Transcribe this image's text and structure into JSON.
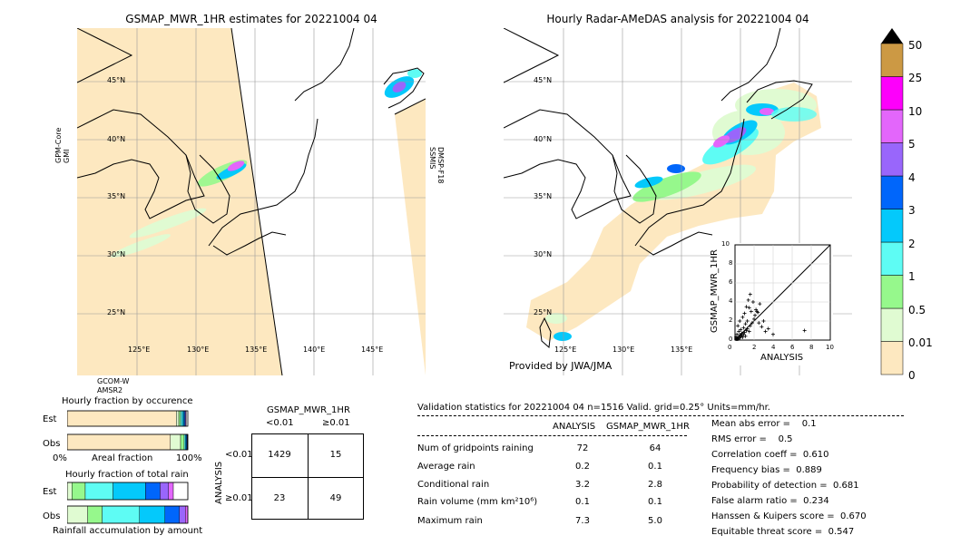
{
  "colors": {
    "land": "#fde8c0",
    "scale": [
      "#fde8c0",
      "#e0fbd2",
      "#96f88c",
      "#5efcf4",
      "#04c9fb",
      "#0066fb",
      "#9966fb",
      "#e366fb",
      "#fd00fb",
      "#cc9944"
    ]
  },
  "left_map": {
    "title": "GSMAP_MWR_1HR estimates for 20221004 04",
    "sat_left": "GPM-Core\nGMI",
    "sat_right": "DMSP-F18\nSSMIS",
    "sat_bottom": "GCOM-W\nAMSR2",
    "lat_labels": [
      "45°N",
      "40°N",
      "35°N",
      "30°N",
      "25°N"
    ],
    "lon_labels": [
      "125°E",
      "130°E",
      "135°E",
      "140°E",
      "145°E"
    ]
  },
  "right_map": {
    "title": "Hourly Radar-AMeDAS analysis for 20221004 04",
    "credit": "Provided by JWA/JMA",
    "lat_labels": [
      "45°N",
      "40°N",
      "35°N",
      "30°N",
      "25°N"
    ],
    "lon_labels": [
      "125°E",
      "130°E",
      "135°E",
      "140°E",
      "145°E"
    ]
  },
  "scatter": {
    "xlabel": "ANALYSIS",
    "ylabel": "GSMAP_MWR_1HR",
    "ticks": [
      "0",
      "2",
      "4",
      "6",
      "8",
      "10"
    ],
    "top_label": "10"
  },
  "colorbar": {
    "labels": [
      "50",
      "25",
      "10",
      "5",
      "4",
      "3",
      "2",
      "1",
      "0.5",
      "0.01",
      "0"
    ]
  },
  "occurrence": {
    "title": "Hourly fraction by occurence",
    "rows": [
      "Est",
      "Obs"
    ],
    "x_left": "0%",
    "x_mid": "Areal fraction",
    "x_right": "100%"
  },
  "total_rain": {
    "title": "Hourly fraction of total rain",
    "rows": [
      "Est",
      "Obs"
    ],
    "xlabel": "Rainfall accumulation by amount"
  },
  "contingency": {
    "title": "GSMAP_MWR_1HR",
    "col_headers": [
      "<0.01",
      "≥0.01"
    ],
    "side_label": "ANALYSIS",
    "row_headers": [
      "<0.01",
      "≥0.01"
    ],
    "cells": [
      [
        "1429",
        "15"
      ],
      [
        "23",
        "49"
      ]
    ]
  },
  "validation": {
    "header": "Validation statistics for 20221004 04  n=1516 Valid. grid=0.25° Units=mm/hr.",
    "col_analysis": "ANALYSIS",
    "col_gsmap": "GSMAP_MWR_1HR",
    "rows": [
      {
        "label": "Num of gridpoints raining",
        "a": "72",
        "g": "64"
      },
      {
        "label": "Average rain",
        "a": "0.2",
        "g": "0.1"
      },
      {
        "label": "Conditional rain",
        "a": "3.2",
        "g": "2.8"
      },
      {
        "label": "Rain volume (mm km²10⁶)",
        "a": "0.1",
        "g": "0.1"
      },
      {
        "label": "Maximum rain",
        "a": "7.3",
        "g": "5.0"
      }
    ],
    "scores": [
      "Mean abs error =    0.1",
      "RMS error =    0.5",
      "Correlation coeff =  0.610",
      "Frequency bias =  0.889",
      "Probability of detection =  0.681",
      "False alarm ratio =  0.234",
      "Hanssen & Kuipers score =  0.670",
      "Equitable threat score =  0.547"
    ]
  },
  "chart_data": [
    {
      "type": "scatter",
      "title": "",
      "xlabel": "ANALYSIS",
      "ylabel": "GSMAP_MWR_1HR",
      "xlim": [
        0,
        10
      ],
      "ylim": [
        0,
        10
      ],
      "x": [
        0.1,
        0.2,
        0.3,
        0.4,
        0.5,
        0.6,
        0.7,
        0.8,
        0.9,
        1.0,
        1.1,
        1.2,
        1.3,
        1.5,
        1.6,
        1.8,
        2.0,
        2.1,
        2.3,
        2.5,
        2.8,
        3.0,
        3.2,
        4.0,
        0.3,
        0.5,
        0.8,
        1.0,
        1.2,
        1.4,
        1.6,
        1.9,
        2.2,
        2.6,
        7.3,
        0.2,
        0.4,
        0.6,
        0.9,
        1.1,
        0.1,
        0.3,
        0.5,
        0.7,
        1.3,
        1.7,
        2.4,
        1.5,
        3.5,
        0.2
      ],
      "y": [
        0.1,
        0.2,
        0.1,
        0.3,
        0.2,
        0.4,
        0.5,
        0.3,
        0.6,
        0.8,
        0.4,
        1.0,
        1.2,
        0.9,
        1.5,
        1.8,
        2.2,
        2.6,
        3.0,
        1.8,
        1.4,
        2.0,
        0.9,
        0.6,
        1.5,
        2.0,
        2.4,
        2.8,
        3.5,
        4.2,
        4.8,
        4.0,
        3.2,
        3.8,
        1.0,
        0.6,
        0.9,
        1.1,
        1.3,
        1.7,
        0.3,
        0.2,
        0.5,
        0.7,
        2.0,
        3.0,
        2.9,
        3.4,
        1.2,
        0.1
      ]
    },
    {
      "type": "bar",
      "title": "Hourly fraction by occurence",
      "categories": [
        "Est",
        "Obs"
      ],
      "series": [
        {
          "color": "#fde8c0",
          "values": [
            0.905,
            0.855
          ]
        },
        {
          "color": "#e0fbd2",
          "values": [
            0.02,
            0.085
          ]
        },
        {
          "color": "#96f88c",
          "values": [
            0.015,
            0.03
          ]
        },
        {
          "color": "#5efcf4",
          "values": [
            0.015,
            0.01
          ]
        },
        {
          "color": "#04c9fb",
          "values": [
            0.012,
            0.008
          ]
        },
        {
          "color": "#0066fb",
          "values": [
            0.01,
            0.006
          ]
        },
        {
          "color": "#9966fb",
          "values": [
            0.006,
            0.004
          ]
        },
        {
          "color": "#e366fb",
          "values": [
            0.004,
            0.002
          ]
        }
      ]
    },
    {
      "type": "bar",
      "title": "Hourly fraction of total rain",
      "categories": [
        "Est",
        "Obs"
      ],
      "series": [
        {
          "color": "#e0fbd2",
          "values": [
            0.04,
            0.17
          ]
        },
        {
          "color": "#96f88c",
          "values": [
            0.11,
            0.12
          ]
        },
        {
          "color": "#5efcf4",
          "values": [
            0.23,
            0.31
          ]
        },
        {
          "color": "#04c9fb",
          "values": [
            0.27,
            0.21
          ]
        },
        {
          "color": "#0066fb",
          "values": [
            0.12,
            0.12
          ]
        },
        {
          "color": "#9966fb",
          "values": [
            0.07,
            0.05
          ]
        },
        {
          "color": "#e366fb",
          "values": [
            0.04,
            0.02
          ]
        },
        {
          "color": "#ffffff",
          "values": [
            0.12,
            0.0
          ]
        }
      ]
    }
  ]
}
